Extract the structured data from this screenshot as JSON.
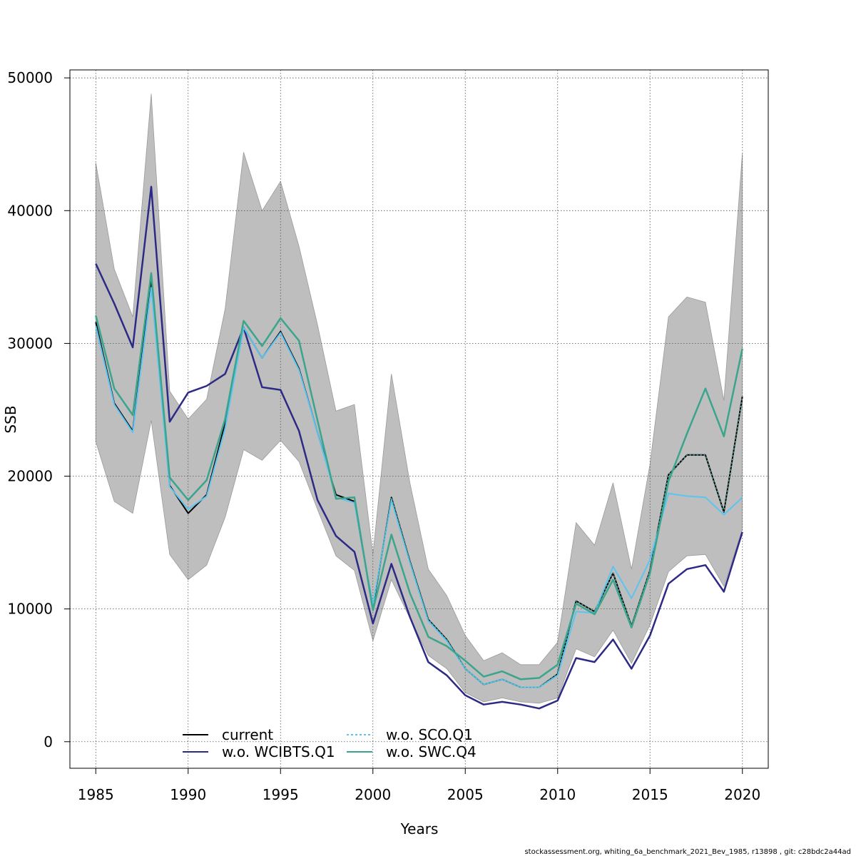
{
  "chart_data": {
    "type": "line",
    "xlabel": "Years",
    "ylabel": "SSB",
    "xlim": [
      1983.6,
      2021.4
    ],
    "ylim": [
      -2000,
      50600
    ],
    "x_ticks": [
      1985,
      1990,
      1995,
      2000,
      2005,
      2010,
      2015,
      2020
    ],
    "y_ticks": [
      0,
      10000,
      20000,
      30000,
      40000,
      50000
    ],
    "grid": true,
    "legend_position": "bottom-center",
    "footer": "stockassessment.org, whiting_6a_benchmark_2021_Bev_1985, r13898 , git: c28bdc2a44ad",
    "x": [
      1985,
      1986,
      1987,
      1988,
      1989,
      1990,
      1991,
      1992,
      1993,
      1994,
      1995,
      1996,
      1997,
      1998,
      1999,
      2000,
      2001,
      2002,
      2003,
      2004,
      2005,
      2006,
      2007,
      2008,
      2009,
      2010,
      2011,
      2012,
      2013,
      2014,
      2015,
      2016,
      2017,
      2018,
      2019,
      2020
    ],
    "band": {
      "color": "#bebebe",
      "lower": [
        22600,
        18100,
        17200,
        24200,
        14100,
        12200,
        13300,
        16900,
        22000,
        21200,
        22700,
        21100,
        17500,
        14000,
        12900,
        7600,
        12200,
        9300,
        6500,
        5500,
        3700,
        3000,
        3300,
        3000,
        2900,
        3300,
        7000,
        6400,
        8400,
        5900,
        8800,
        12800,
        14000,
        14100,
        11700,
        16000
      ],
      "upper": [
        43600,
        35600,
        32000,
        48800,
        26400,
        24300,
        25800,
        32600,
        44400,
        40000,
        42200,
        37300,
        31400,
        24900,
        25400,
        14100,
        27700,
        19500,
        13000,
        11000,
        8000,
        6100,
        6700,
        5800,
        5800,
        7500,
        16500,
        14800,
        19500,
        13000,
        20900,
        32000,
        33500,
        33100,
        25700,
        44300
      ]
    },
    "series": [
      {
        "name": "current",
        "color": "#000000",
        "width": 2,
        "dash": "",
        "values": [
          31600,
          25500,
          23400,
          34700,
          19300,
          17200,
          18600,
          24000,
          31200,
          28900,
          30900,
          28100,
          23300,
          18600,
          18100,
          10100,
          18400,
          13600,
          9200,
          7700,
          5500,
          4300,
          4700,
          4100,
          4100,
          5100,
          10600,
          9800,
          12700,
          8700,
          12900,
          20100,
          21600,
          21600,
          17300,
          26000
        ]
      },
      {
        "name": "w.o. WCIBTS.Q1",
        "color": "#2c2a85",
        "width": 2.5,
        "dash": "",
        "values": [
          36000,
          33000,
          29700,
          41800,
          24100,
          26300,
          26800,
          27700,
          31200,
          26700,
          26500,
          23400,
          18200,
          15500,
          14300,
          8900,
          13400,
          9400,
          6000,
          5000,
          3500,
          2800,
          3000,
          2800,
          2500,
          3100,
          6300,
          6000,
          7700,
          5500,
          8000,
          11900,
          13000,
          13300,
          11300,
          15800
        ]
      },
      {
        "name": "w.o. SCO.Q1",
        "color": "#5bc4f1",
        "width": 2,
        "dash": "",
        "values": [
          31300,
          25400,
          23300,
          34200,
          19200,
          17500,
          18500,
          23600,
          31200,
          28900,
          30800,
          28000,
          23300,
          18400,
          18000,
          10300,
          18200,
          13500,
          9100,
          7600,
          5500,
          4300,
          4700,
          4100,
          4100,
          5000,
          9800,
          9700,
          13200,
          10800,
          13700,
          18700,
          18500,
          18400,
          17100,
          18400
        ]
      },
      {
        "name": "w.o. SWC.Q4",
        "color": "#3aa58c",
        "width": 2.5,
        "dash": "",
        "values": [
          32100,
          26600,
          24600,
          35300,
          19900,
          18200,
          19700,
          24300,
          31700,
          29800,
          31900,
          30200,
          24200,
          18300,
          18400,
          9900,
          15600,
          11200,
          7900,
          7200,
          6100,
          4900,
          5300,
          4700,
          4800,
          5800,
          10400,
          9600,
          12200,
          8600,
          12700,
          19600,
          23200,
          26600,
          23000,
          29600
        ]
      }
    ],
    "overlays": [
      {
        "of": "current",
        "color": "#5bc4f1",
        "width": 1.2,
        "dash": "2 3",
        "from_index": 14
      },
      {
        "of": "current",
        "color": "#3aa58c",
        "width": 1.2,
        "dash": "2 3",
        "from_index": 14
      }
    ],
    "legend_items": [
      {
        "label": "current",
        "color": "#000000",
        "dash": ""
      },
      {
        "label": "w.o. WCIBTS.Q1",
        "color": "#2c2a85",
        "dash": ""
      },
      {
        "label": "w.o. SCO.Q1",
        "color": "#5bc4f1",
        "dash": "3 3"
      },
      {
        "label": "w.o. SWC.Q4",
        "color": "#3aa58c",
        "dash": ""
      }
    ]
  }
}
